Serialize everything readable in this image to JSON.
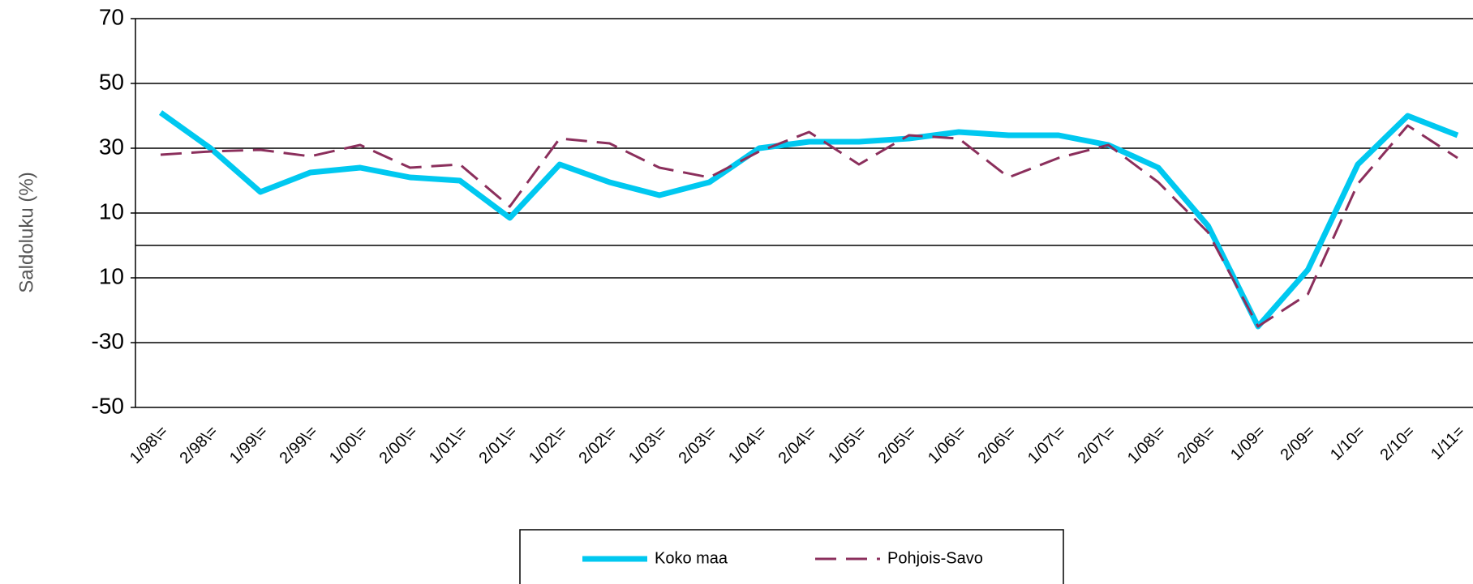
{
  "chart_data": {
    "type": "line",
    "y_label": "Saldoluku (%)",
    "categories": [
      "1/98\\=",
      "2/98\\=",
      "1/99\\=",
      "2/99\\=",
      "1/00\\=",
      "2/00\\=",
      "1/01\\=",
      "2/01\\=",
      "1/02\\=",
      "2/02\\=",
      "1/03\\=",
      "2/03\\=",
      "1/04\\=",
      "2/04\\=",
      "1/05\\=",
      "2/05\\=",
      "1/06\\=",
      "2/06\\=",
      "1/07\\=",
      "2/07\\=",
      "1/08\\=",
      "2/08\\=",
      "1/09=",
      "2/09=",
      "1/10=",
      "2/10=",
      "1/11="
    ],
    "series": [
      {
        "name": "Koko maa",
        "color": "#00c8f0",
        "values": [
          41,
          30,
          16.5,
          22.5,
          24,
          21,
          20,
          8.5,
          25,
          19.5,
          15.5,
          19.5,
          30,
          32,
          32,
          33,
          35,
          34,
          34,
          31,
          24,
          6,
          -25,
          -7.5,
          25,
          40,
          34
        ]
      },
      {
        "name": "Pohjois-Savo",
        "color": "#8b2f5c",
        "dashed": true,
        "values": [
          28,
          29,
          29.5,
          27.5,
          31,
          24,
          25,
          12,
          33,
          31.5,
          24,
          21,
          29,
          35,
          25,
          34,
          33,
          21,
          27,
          31,
          19.5,
          4,
          -25,
          -15,
          19,
          37,
          27
        ]
      }
    ],
    "ylim": [
      -50,
      70
    ],
    "yticks": [
      70,
      50,
      30,
      10,
      {
        "value": -10,
        "label": "10"
      },
      -30,
      -50
    ],
    "grid": true,
    "legend": "bottom"
  }
}
